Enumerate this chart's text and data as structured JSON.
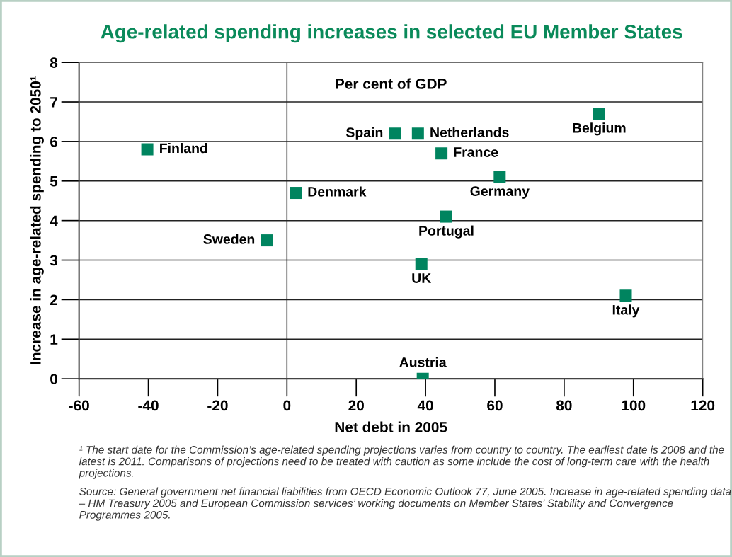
{
  "chart_data": {
    "type": "scatter",
    "title": "Age-related spending increases in selected EU Member States",
    "subtitle": "Per cent of GDP",
    "xlabel": "Net debt in 2005",
    "ylabel": "Increase in age-related spending to 2050¹",
    "x": [
      -40.3,
      -5.8,
      2.5,
      31.2,
      37.8,
      44.6,
      61.4,
      46,
      38.8,
      97.8,
      39.2,
      90.1
    ],
    "series": [
      {
        "color": "#00845f",
        "values": [
          5.8,
          3.5,
          4.7,
          6.2,
          6.2,
          5.7,
          5.1,
          4.1,
          2.9,
          2.1,
          0,
          6.7
        ]
      }
    ],
    "marker": "square",
    "grid": "y",
    "xlim": [
      -60,
      120
    ],
    "xticks": [
      -60,
      -40,
      -20,
      0,
      20,
      40,
      60,
      80,
      100,
      120
    ],
    "ylim": [
      0,
      8
    ],
    "yticks": [
      0,
      1,
      2,
      3,
      4,
      5,
      6,
      7,
      8
    ],
    "ref_lines": [
      {
        "axis": "x",
        "value": 0,
        "label": null
      }
    ],
    "annotations": [
      {
        "text": "Finland",
        "x": -40.3,
        "y": 5.8
      },
      {
        "text": "Sweden",
        "x": -5.8,
        "y": 3.5
      },
      {
        "text": "Denmark",
        "x": 2.5,
        "y": 4.7
      },
      {
        "text": "Spain",
        "x": 31.2,
        "y": 6.2
      },
      {
        "text": "Netherlands",
        "x": 37.8,
        "y": 6.2
      },
      {
        "text": "France",
        "x": 44.6,
        "y": 5.7
      },
      {
        "text": "Germany",
        "x": 61.4,
        "y": 5.1
      },
      {
        "text": "Portugal",
        "x": 46,
        "y": 4.1
      },
      {
        "text": "UK",
        "x": 38.8,
        "y": 2.9
      },
      {
        "text": "Italy",
        "x": 97.8,
        "y": 2.1
      },
      {
        "text": "Austria",
        "x": 39.2,
        "y": 0
      },
      {
        "text": "Belgium",
        "x": 90.1,
        "y": 6.7
      },
      "¹ The start date for the Commission’s age-related spending projections varies from country to country. The earliest date is 2008 and the latest is 2011. Comparisons of projections need to be treated with caution as some include the cost of long-term care with the health projections.",
      "Source: General government net financial liabilities from OECD Economic Outlook 77, June 2005. Increase in age-related spending data – HM Treasury 2005 and European Commission services’ working documents on Member States’ Stability and Convergence Programmes 2005."
    ]
  }
}
